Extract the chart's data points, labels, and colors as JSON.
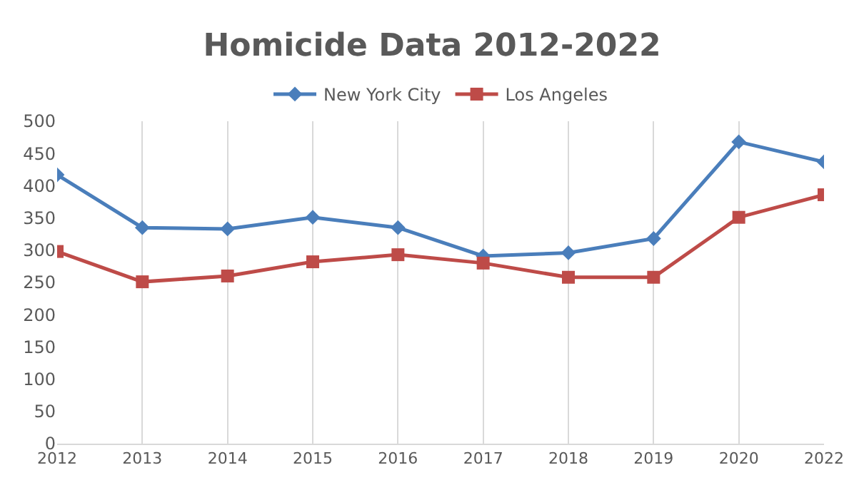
{
  "chart_data": {
    "type": "line",
    "title": "Homicide Data 2012-2022",
    "categories": [
      "2012",
      "2013",
      "2014",
      "2015",
      "2016",
      "2017",
      "2018",
      "2019",
      "2020",
      "2022"
    ],
    "series": [
      {
        "name": "New York City",
        "color": "#4a7ebb",
        "marker": "diamond",
        "values": [
          417,
          335,
          333,
          351,
          335,
          291,
          296,
          318,
          468,
          437
        ]
      },
      {
        "name": "Los Angeles",
        "color": "#be4b48",
        "marker": "square",
        "values": [
          298,
          251,
          260,
          282,
          293,
          280,
          258,
          258,
          351,
          386
        ]
      }
    ],
    "ylim": [
      0,
      500
    ],
    "yticks": [
      0,
      50,
      100,
      150,
      200,
      250,
      300,
      350,
      400,
      450,
      500
    ],
    "grid": "x",
    "legend": "top",
    "line_style": "solid"
  }
}
